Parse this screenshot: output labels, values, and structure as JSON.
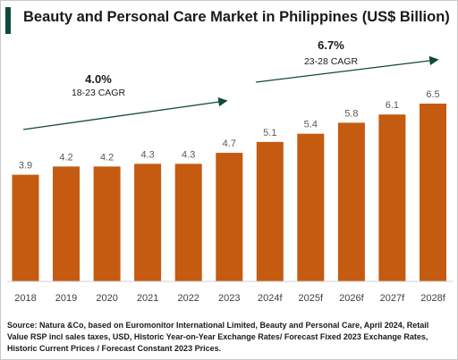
{
  "title": "Beauty and Personal Care Market in Philippines (US$ Billion)",
  "chart_data": {
    "type": "bar",
    "title": "Beauty and Personal Care Market in Philippines (US$ Billion)",
    "categories": [
      "2018",
      "2019",
      "2020",
      "2021",
      "2022",
      "2023",
      "2024f",
      "2025f",
      "2026f",
      "2027f",
      "2028f"
    ],
    "values": [
      3.9,
      4.2,
      4.2,
      4.3,
      4.3,
      4.7,
      5.1,
      5.4,
      5.8,
      6.1,
      6.5
    ],
    "data_labels": [
      "3.9",
      "4.2",
      "4.2",
      "4.3",
      "4.3",
      "4.7",
      "5.1",
      "5.4",
      "5.8",
      "6.1",
      "6.5"
    ],
    "ylim": [
      0,
      7.5
    ],
    "bar_color": "#c55a11",
    "annotations": [
      {
        "pct": "4.0%",
        "label": "18-23 CAGR"
      },
      {
        "pct": "6.7%",
        "label": "23-28 CAGR"
      }
    ],
    "grid": false
  },
  "source": "Source: Natura &Co, based on Euromonitor International Limited, Beauty and Personal Care, April 2024, Retail Value RSP incl sales taxes, USD, Historic Year-on-Year Exchange Rates/ Forecast Fixed 2023 Exchange Rates, Historic Current Prices / Forecast Constant 2023 Prices."
}
